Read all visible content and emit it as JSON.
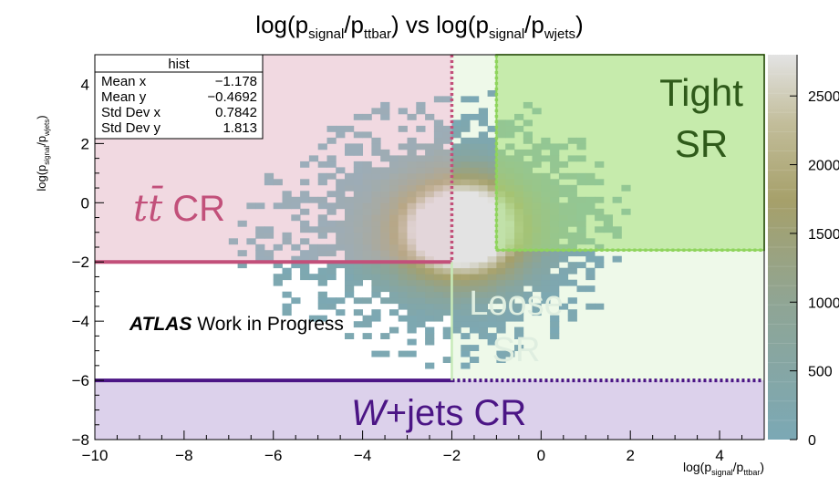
{
  "chart_data": {
    "type": "heatmap",
    "title": {
      "prefix": "log(p",
      "sub1": "signal",
      "mid1": "/p",
      "sub2": "ttbar",
      "mid2": ") vs log(p",
      "sub3": "signal",
      "mid3": "/p",
      "sub4": "wjets",
      "suffix": ")"
    },
    "xlabel": {
      "prefix": "log(p",
      "sub1": "signal",
      "mid": "/p",
      "sub2": "ttbar",
      "suffix": ")"
    },
    "ylabel": {
      "prefix": "log(p",
      "sub1": "signal",
      "mid": "/p",
      "sub2": "wjets",
      "suffix": ")"
    },
    "xlim": [
      -10,
      5
    ],
    "ylim": [
      -8,
      5
    ],
    "xticks": [
      -10,
      -8,
      -6,
      -4,
      -2,
      0,
      2,
      4
    ],
    "xtick_labels": [
      "−10",
      "−8",
      "−6",
      "−4",
      "−2",
      "0",
      "2",
      "4"
    ],
    "yticks": [
      -8,
      -6,
      -4,
      -2,
      0,
      2,
      4
    ],
    "ytick_labels": [
      "−8",
      "−6",
      "−4",
      "−2",
      "0",
      "2",
      "4"
    ],
    "colorbar": {
      "range": [
        0,
        2800
      ],
      "ticks": [
        0,
        500,
        1000,
        1500,
        2000,
        2500
      ],
      "tick_labels": [
        "0",
        "500",
        "1000",
        "1500",
        "2000",
        "2500"
      ],
      "low_color": "#7ba8b5",
      "mid_color": "#a6a06a",
      "high_color": "#e3e3e3"
    },
    "stats_box": {
      "title": "hist",
      "rows": [
        {
          "label": "Mean x",
          "value": "−1.178"
        },
        {
          "label": "Mean y",
          "value": "−0.4692"
        },
        {
          "label": "Std Dev x",
          "value": "0.7842"
        },
        {
          "label": "Std Dev y",
          "value": "1.813"
        }
      ]
    },
    "distribution": {
      "description_free": true,
      "peak_x": -1.6,
      "peak_y": -0.8,
      "sigma_x": 0.9,
      "sigma_y": 1.9
    },
    "regions": [
      {
        "id": "ttbar-cr",
        "label_italic": "tt̄",
        "label_rest": " CR",
        "x": [
          -10,
          -2
        ],
        "y": [
          -2,
          5
        ],
        "fill": "#e6b9c8",
        "edge": "#c2507a"
      },
      {
        "id": "wjets-cr",
        "label_italic": "W",
        "label_rest": "+jets CR",
        "x": [
          -10,
          5
        ],
        "y": [
          -8,
          -6
        ],
        "fill": "#c9b8e0",
        "edge": "#4b1585"
      },
      {
        "id": "tight-sr",
        "label_line1": "Tight",
        "label_line2": "SR",
        "x": [
          -1,
          5
        ],
        "y": [
          -1.6,
          5
        ],
        "fill": "#a6e07a",
        "edge": "#8fd45c",
        "text_color": "#2f5a1a"
      },
      {
        "id": "loose-sr",
        "label_line1": "Loose",
        "label_line2": "SR",
        "x": [
          -2,
          5
        ],
        "y": [
          -6,
          5
        ],
        "fill": "#d9f2cf",
        "edge": "#c7eab8",
        "text_color": "#dfeee0"
      }
    ],
    "annotation": {
      "bold": "ATLAS",
      "rest": " Work in Progress"
    },
    "grid": false,
    "legend": "none"
  }
}
